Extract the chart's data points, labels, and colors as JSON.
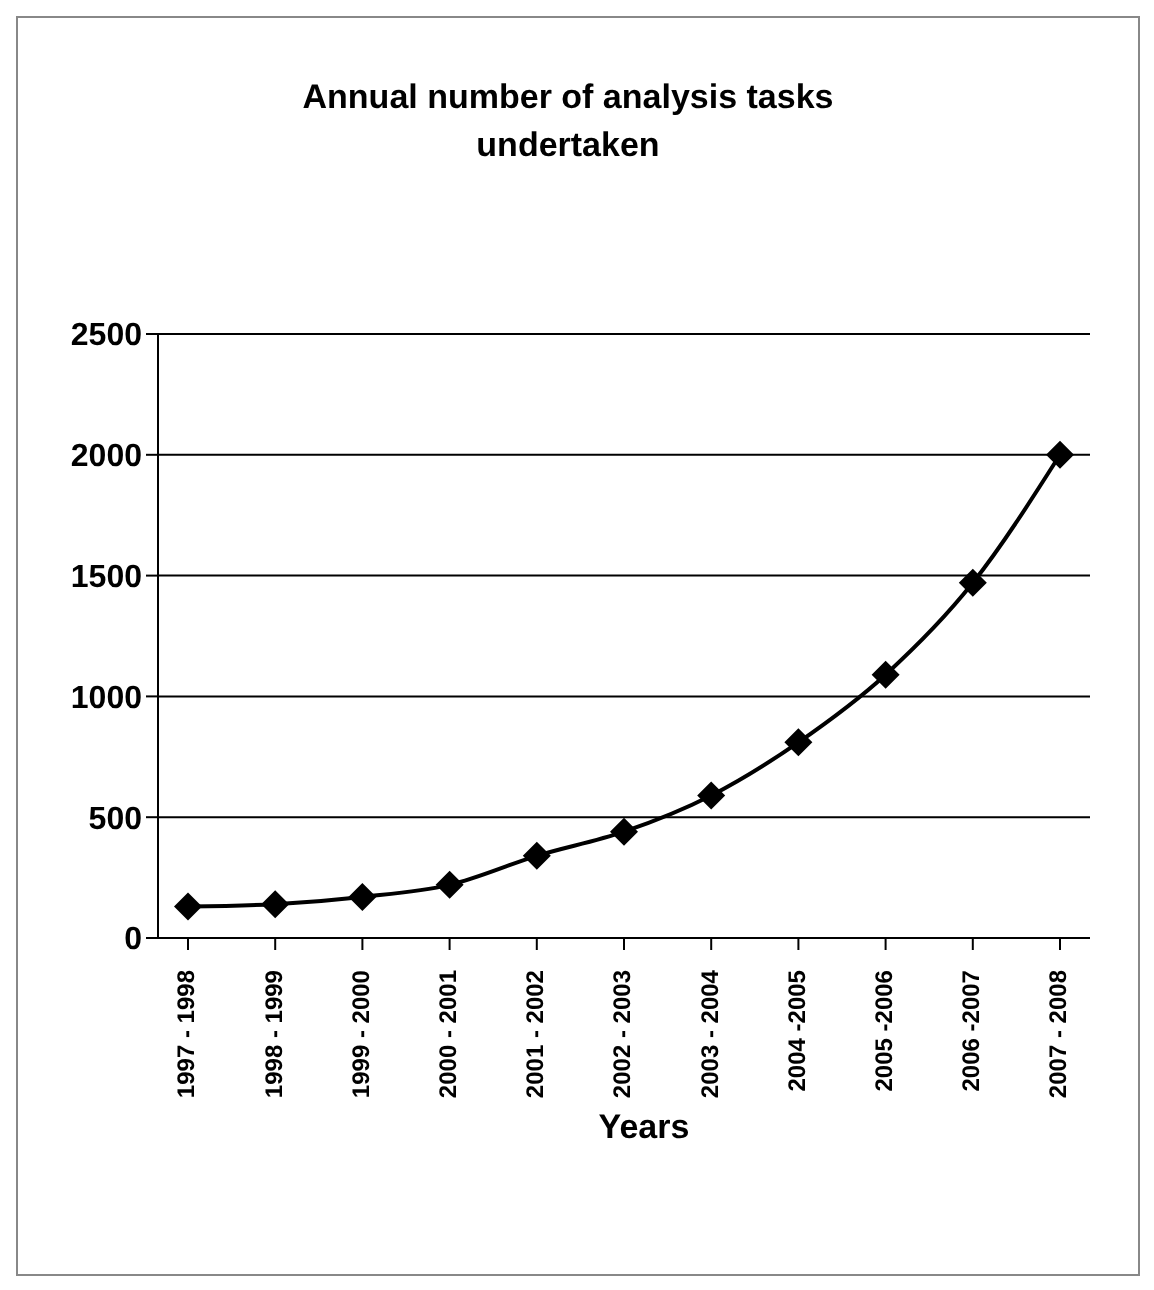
{
  "chart_data": {
    "type": "line",
    "title": "Annual number of analysis tasks undertaken",
    "xlabel": "Years",
    "categories": [
      "1997 - 1998",
      "1998 - 1999",
      "1999 - 2000",
      "2000 - 2001",
      "2001 - 2002",
      "2002 - 2003",
      "2003 - 2004",
      "2004 -2005",
      "2005 -2006",
      "2006 -2007",
      "2007 - 2008"
    ],
    "values": [
      130,
      140,
      170,
      220,
      340,
      440,
      590,
      810,
      1090,
      1470,
      2000
    ],
    "color": "#000000",
    "ylim": [
      0,
      2500
    ],
    "yticks": [
      0,
      500,
      1000,
      1500,
      2000,
      2500
    ],
    "grid": "y",
    "marker": "diamond",
    "line_style": "solid"
  }
}
